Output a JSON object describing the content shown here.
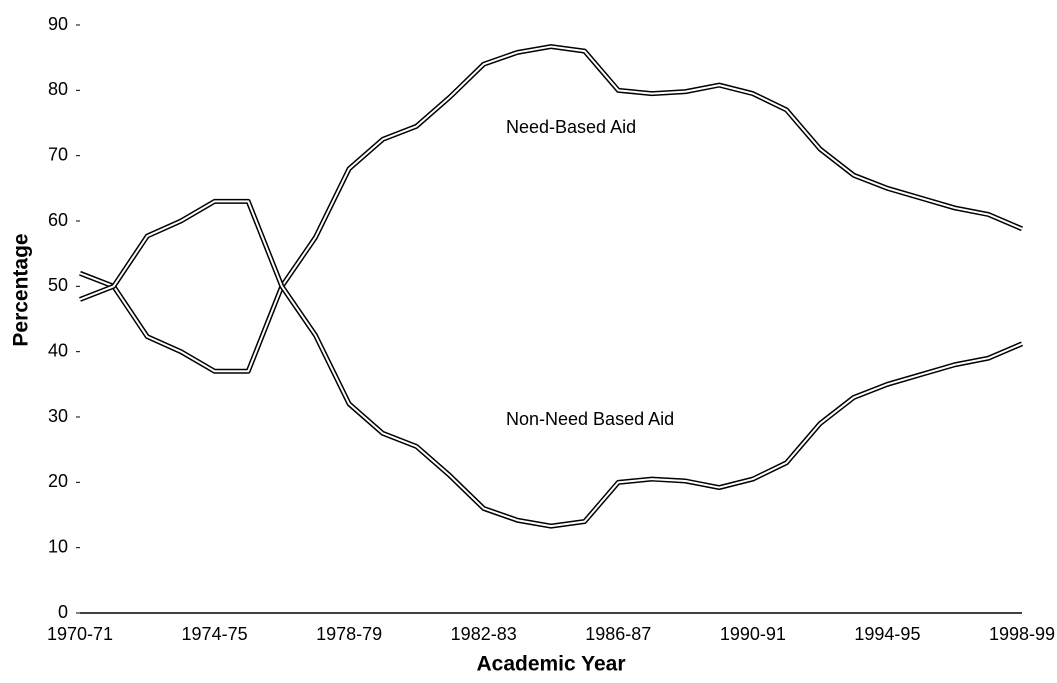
{
  "chart_data": {
    "type": "line",
    "x_label": "Academic Year",
    "y_label": "Percentage",
    "categories": [
      "1970-71",
      null,
      null,
      null,
      "1974-75",
      null,
      null,
      null,
      "1978-79",
      null,
      null,
      null,
      "1982-83",
      null,
      null,
      null,
      "1986-87",
      null,
      null,
      null,
      "1990-91",
      null,
      null,
      null,
      "1994-95",
      null,
      null,
      null,
      "1998-99"
    ],
    "series": [
      {
        "name": "Need-Based Aid",
        "color": "#000000",
        "values": [
          52,
          50,
          42.3,
          40,
          37,
          37,
          50,
          57.5,
          68,
          72.5,
          74.5,
          79,
          84,
          85.8,
          86.7,
          86,
          80,
          79.5,
          79.8,
          80.8,
          79.5,
          77,
          71,
          67,
          65,
          63.5,
          62,
          61,
          58.8
        ]
      },
      {
        "name": "Non-Need Based Aid",
        "color": "#000000",
        "values": [
          48,
          50,
          57.7,
          60,
          63,
          63,
          50,
          42.5,
          32,
          27.5,
          25.5,
          21,
          16,
          14.2,
          13.3,
          14,
          20,
          20.5,
          20.2,
          19.2,
          20.5,
          23,
          29,
          33,
          35,
          36.5,
          38,
          39,
          41.2
        ]
      }
    ],
    "ylim": [
      0,
      90
    ],
    "yticks": [
      0,
      10,
      20,
      30,
      40,
      50,
      60,
      70,
      80,
      90
    ]
  }
}
